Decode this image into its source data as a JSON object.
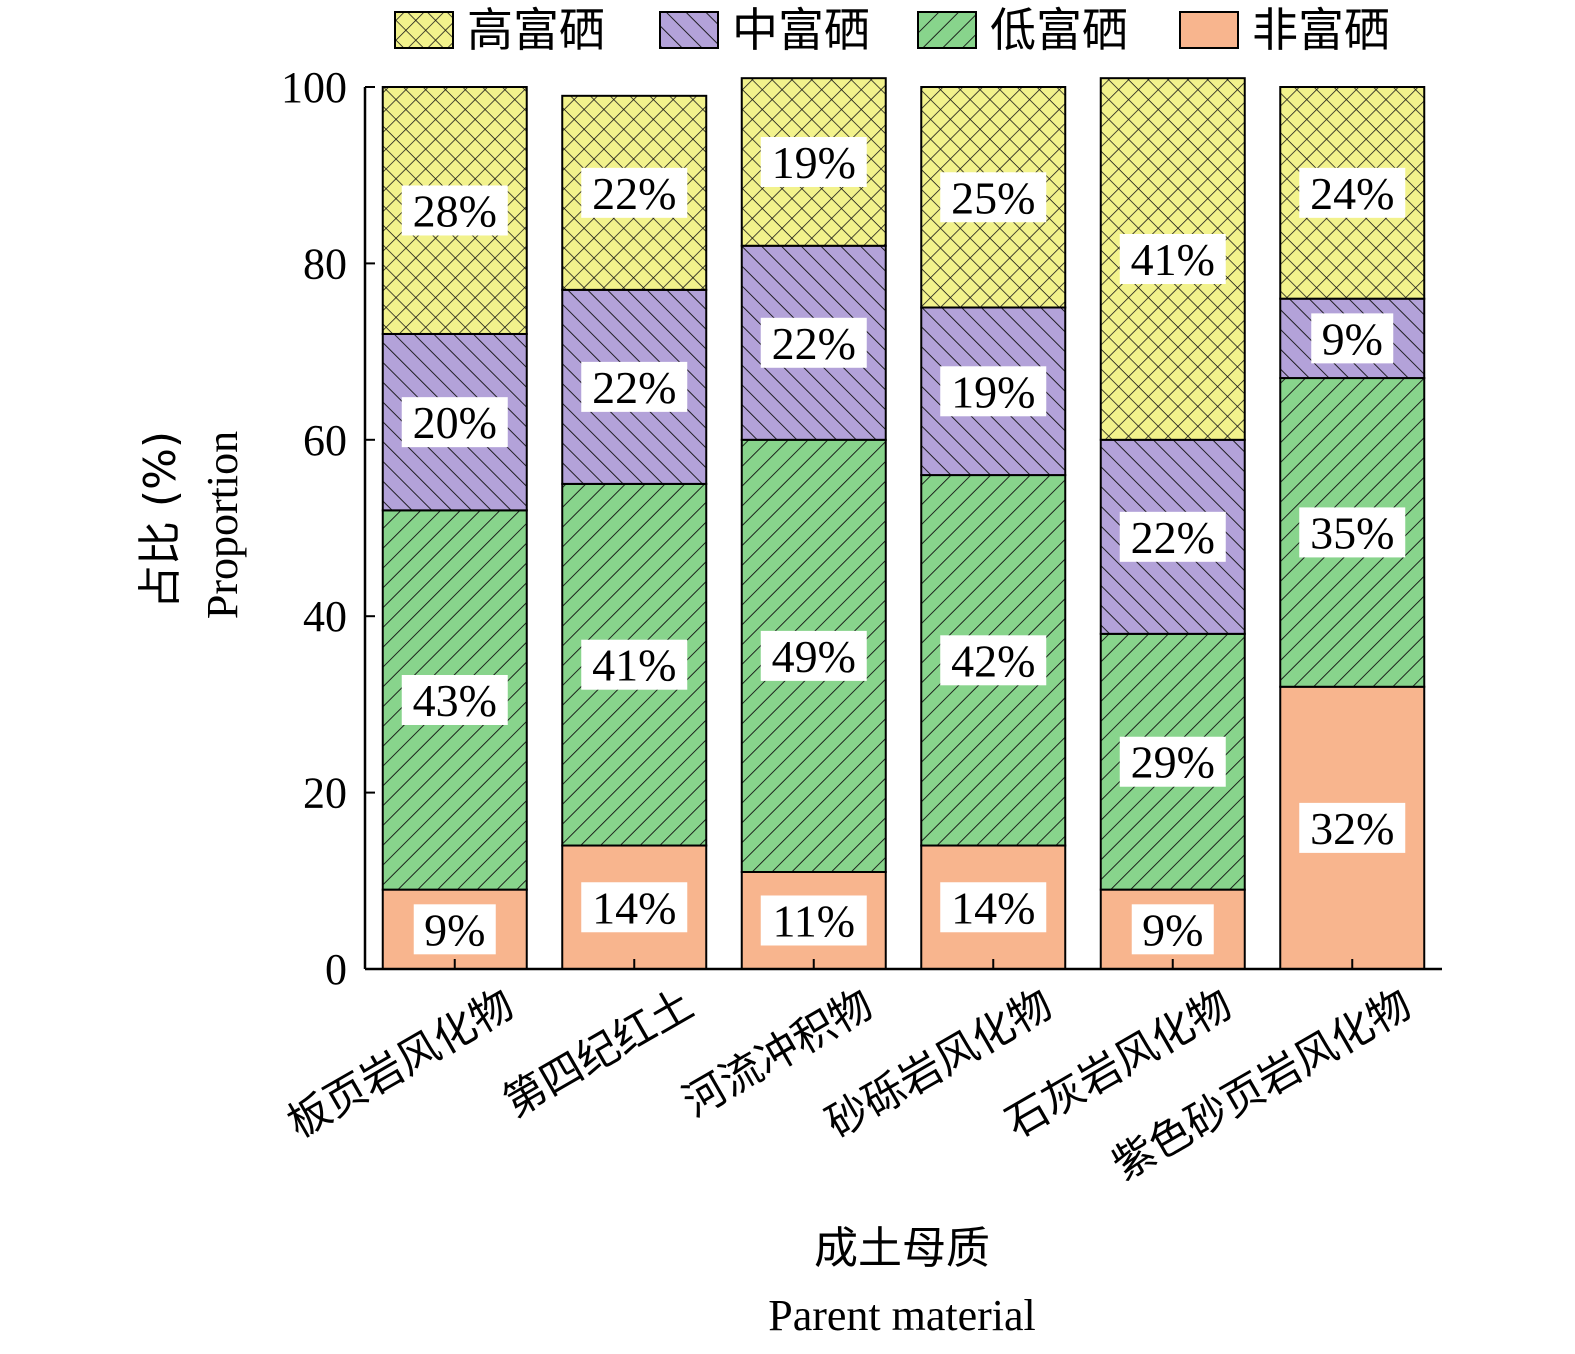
{
  "chart_data": {
    "type": "bar",
    "stacked": true,
    "categories": [
      "板页岩风化物",
      "第四纪红土",
      "河流冲积物",
      "砂砾岩风化物",
      "石灰岩风化物",
      "紫色砂页岩风化物"
    ],
    "series": [
      {
        "name": "非富硒",
        "values": [
          9,
          14,
          11,
          14,
          9,
          32
        ],
        "labels": [
          "9%",
          "14%",
          "11%",
          "14%",
          "9%",
          "32%"
        ],
        "color": "#F8B58E",
        "pattern": "none"
      },
      {
        "name": "低富硒",
        "values": [
          43,
          41,
          49,
          42,
          29,
          35
        ],
        "labels": [
          "43%",
          "41%",
          "49%",
          "42%",
          "29%",
          "35%"
        ],
        "color": "#88D48C",
        "pattern": "diagonal-up"
      },
      {
        "name": "中富硒",
        "values": [
          20,
          22,
          22,
          19,
          22,
          9
        ],
        "labels": [
          "20%",
          "22%",
          "22%",
          "19%",
          "22%",
          "9%"
        ],
        "color": "#B3A2D9",
        "pattern": "diagonal-down"
      },
      {
        "name": "高富硒",
        "values": [
          28,
          22,
          19,
          25,
          41,
          24
        ],
        "labels": [
          "28%",
          "22%",
          "19%",
          "25%",
          "41%",
          "24%"
        ],
        "color": "#F2F28C",
        "pattern": "crosshatch"
      }
    ],
    "legend_order": [
      "高富硒",
      "中富硒",
      "低富硒",
      "非富硒"
    ],
    "legend_position": "top",
    "ylim": [
      0,
      100
    ],
    "yticks": [
      0,
      20,
      40,
      60,
      80,
      100
    ],
    "ylabel_zh": "占比 (%)",
    "ylabel_en": "Proportion",
    "xlabel_zh": "成土母质",
    "xlabel_en": "Parent material",
    "grid": false
  }
}
